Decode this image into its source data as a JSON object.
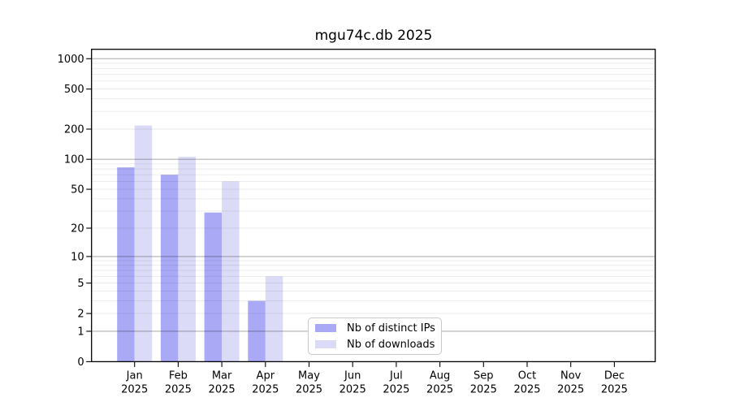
{
  "title": "mgu74c.db 2025",
  "chart_data": {
    "type": "bar",
    "title": "mgu74c.db 2025",
    "y_scale": "log1p",
    "ylim": [
      0,
      1240
    ],
    "y_ticks": [
      0,
      1,
      2,
      5,
      10,
      20,
      50,
      100,
      200,
      500,
      1000
    ],
    "grid": {
      "major_lines": [
        1,
        10,
        100,
        1000
      ],
      "minor_multiples": [
        2,
        3,
        4,
        5,
        6,
        7,
        8,
        9
      ],
      "minor_decades": [
        1,
        10,
        100
      ]
    },
    "categories": [
      "Jan",
      "Feb",
      "Mar",
      "Apr",
      "May",
      "Jun",
      "Jul",
      "Aug",
      "Sep",
      "Oct",
      "Nov",
      "Dec"
    ],
    "category_year": "2025",
    "series": [
      {
        "name": "Nb of distinct IPs",
        "color": "#a9a9f6",
        "values": [
          83,
          70,
          29,
          3,
          0,
          0,
          0,
          0,
          0,
          0,
          0,
          0
        ]
      },
      {
        "name": "Nb of downloads",
        "color": "#dbdbf8",
        "values": [
          217,
          106,
          60,
          6,
          0,
          0,
          0,
          0,
          0,
          0,
          0,
          0
        ]
      }
    ],
    "legend_position": "bottom-center"
  },
  "colors": {
    "background": "#ffffff",
    "axis": "#000000",
    "grid_major": "rgba(0,0,0,0.30)",
    "grid_minor": "rgba(0,0,0,0.085)",
    "tick_label": "#000000",
    "legend_border": "#c9c9c9"
  }
}
